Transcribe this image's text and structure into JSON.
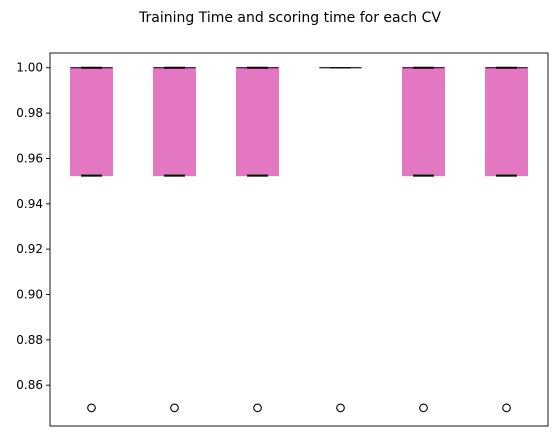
{
  "chart_data": {
    "type": "box",
    "title": "Training Time and scoring time for each CV",
    "xlabel": "",
    "ylabel": "",
    "ylim": [
      0.842,
      1.0065
    ],
    "yticks": [
      0.86,
      0.88,
      0.9,
      0.92,
      0.94,
      0.96,
      0.98,
      1.0
    ],
    "ytick_labels": [
      "0.86",
      "0.88",
      "0.90",
      "0.92",
      "0.94",
      "0.96",
      "0.98",
      "1.00"
    ],
    "xtick_labels": [],
    "grid": false,
    "box_color": "#e377c2",
    "boxes": [
      {
        "whisker_low": 0.9524,
        "q1": 0.9524,
        "median": 1.0,
        "q3": 1.0,
        "whisker_high": 1.0,
        "outliers": [
          0.85
        ]
      },
      {
        "whisker_low": 0.9524,
        "q1": 0.9524,
        "median": 1.0,
        "q3": 1.0,
        "whisker_high": 1.0,
        "outliers": [
          0.85
        ]
      },
      {
        "whisker_low": 0.9524,
        "q1": 0.9524,
        "median": 1.0,
        "q3": 1.0,
        "whisker_high": 1.0,
        "outliers": [
          0.85
        ]
      },
      {
        "whisker_low": 1.0,
        "q1": 1.0,
        "median": 1.0,
        "q3": 1.0,
        "whisker_high": 1.0,
        "outliers": [
          0.85
        ]
      },
      {
        "whisker_low": 0.9524,
        "q1": 0.9524,
        "median": 1.0,
        "q3": 1.0,
        "whisker_high": 1.0,
        "outliers": [
          0.85
        ]
      },
      {
        "whisker_low": 0.9524,
        "q1": 0.9524,
        "median": 1.0,
        "q3": 1.0,
        "whisker_high": 1.0,
        "outliers": [
          0.85
        ]
      }
    ]
  }
}
